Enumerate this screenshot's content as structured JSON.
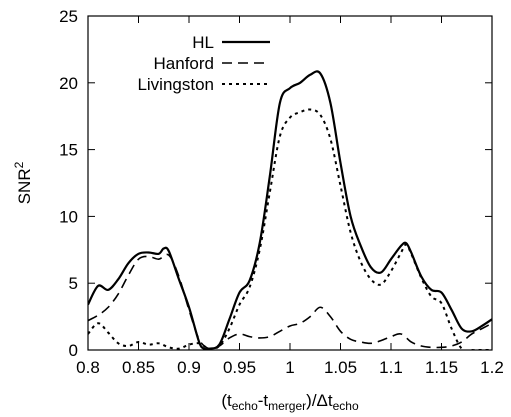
{
  "chart_data": {
    "type": "line",
    "title": "",
    "xlabel": {
      "main": "(t",
      "sub1": "echo",
      "sep": "-t",
      "sub2": "merger",
      "mid": ")/Δt",
      "sub3": "echo"
    },
    "ylabel": {
      "main": "SNR",
      "sup": "2"
    },
    "xlim": [
      0.8,
      1.2
    ],
    "ylim": [
      0,
      25
    ],
    "xticks": [
      0.8,
      0.85,
      0.9,
      0.95,
      1.0,
      1.05,
      1.1,
      1.15,
      1.2
    ],
    "xtick_labels": [
      "0.8",
      "0.85",
      "0.9",
      "0.95",
      "1",
      "1.05",
      "1.1",
      "1.15",
      "1.2"
    ],
    "yticks": [
      0,
      5,
      10,
      15,
      20,
      25
    ],
    "ytick_labels": [
      "0",
      "5",
      "10",
      "15",
      "20",
      "25"
    ],
    "grid": false,
    "legend_position": "top-left",
    "series": [
      {
        "name": "HL",
        "dash": "solid",
        "color": "#000000",
        "x": [
          0.8,
          0.81,
          0.82,
          0.83,
          0.84,
          0.85,
          0.86,
          0.87,
          0.875,
          0.88,
          0.89,
          0.9,
          0.91,
          0.915,
          0.92,
          0.93,
          0.94,
          0.95,
          0.96,
          0.97,
          0.98,
          0.99,
          1.0,
          1.01,
          1.02,
          1.03,
          1.04,
          1.05,
          1.06,
          1.07,
          1.08,
          1.09,
          1.1,
          1.11,
          1.115,
          1.12,
          1.13,
          1.14,
          1.15,
          1.16,
          1.17,
          1.18,
          1.19,
          1.2
        ],
        "y": [
          3.4,
          4.8,
          4.5,
          5.3,
          6.5,
          7.2,
          7.3,
          7.2,
          7.6,
          7.4,
          5.3,
          3.2,
          0.6,
          0.1,
          0.1,
          0.4,
          2.3,
          4.3,
          5.2,
          8.0,
          13.0,
          18.5,
          19.6,
          20.0,
          20.6,
          20.7,
          18.5,
          14.0,
          10.0,
          7.8,
          6.2,
          5.8,
          6.8,
          7.8,
          8.0,
          7.3,
          5.5,
          4.5,
          4.3,
          3.0,
          1.6,
          1.4,
          1.8,
          2.3
        ]
      },
      {
        "name": "Hanford",
        "dash": "dashed",
        "color": "#000000",
        "x": [
          0.8,
          0.81,
          0.82,
          0.83,
          0.84,
          0.85,
          0.86,
          0.87,
          0.88,
          0.89,
          0.9,
          0.91,
          0.92,
          0.93,
          0.94,
          0.95,
          0.96,
          0.97,
          0.98,
          0.99,
          1.0,
          1.01,
          1.02,
          1.03,
          1.04,
          1.05,
          1.06,
          1.07,
          1.08,
          1.09,
          1.1,
          1.11,
          1.12,
          1.13,
          1.14,
          1.15,
          1.16,
          1.17,
          1.18,
          1.19,
          1.2
        ],
        "y": [
          2.2,
          2.6,
          3.2,
          4.2,
          5.6,
          6.8,
          7.0,
          6.8,
          7.1,
          5.5,
          3.0,
          0.8,
          0.1,
          0.3,
          0.9,
          1.2,
          1.0,
          0.9,
          1.0,
          1.4,
          1.8,
          2.0,
          2.5,
          3.2,
          2.5,
          1.4,
          0.8,
          0.6,
          0.5,
          0.7,
          1.0,
          1.2,
          0.6,
          0.3,
          0.2,
          0.2,
          0.3,
          0.6,
          1.2,
          1.6,
          2.0
        ]
      },
      {
        "name": "Livingston",
        "dash": "dotted",
        "color": "#000000",
        "x": [
          0.8,
          0.81,
          0.82,
          0.83,
          0.84,
          0.85,
          0.86,
          0.87,
          0.88,
          0.89,
          0.9,
          0.91,
          0.92,
          0.93,
          0.94,
          0.95,
          0.96,
          0.97,
          0.98,
          0.99,
          1.0,
          1.01,
          1.02,
          1.03,
          1.04,
          1.05,
          1.06,
          1.07,
          1.08,
          1.09,
          1.1,
          1.11,
          1.115,
          1.12,
          1.13,
          1.14,
          1.15,
          1.16,
          1.17,
          1.18,
          1.19,
          1.2
        ],
        "y": [
          1.2,
          2.0,
          1.3,
          0.5,
          0.3,
          0.6,
          0.4,
          0.5,
          0.2,
          0.1,
          0.4,
          0.5,
          0.1,
          0.3,
          1.6,
          3.4,
          4.7,
          7.5,
          11.8,
          16.0,
          17.4,
          17.8,
          18.0,
          17.6,
          15.8,
          12.3,
          8.8,
          6.6,
          5.3,
          4.9,
          5.9,
          7.3,
          7.9,
          7.2,
          5.4,
          4.0,
          3.5,
          1.6,
          0.1,
          0.0,
          0.0,
          0.0
        ]
      }
    ]
  }
}
